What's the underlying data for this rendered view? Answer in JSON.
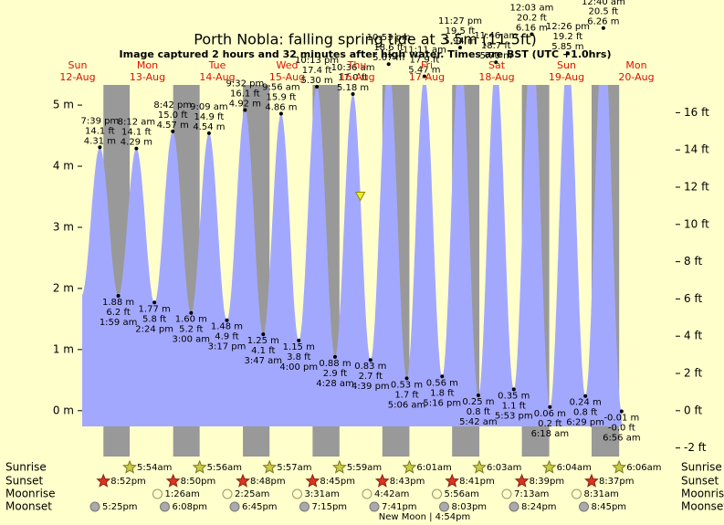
{
  "chart_data": {
    "type": "tide",
    "title": "Porth Nobla: falling  spring tide at 3.5m (11.5ft)",
    "subtitle": "Image captured 2 hours and 32 minutes after high water. Times are BST (UTC +1.0hrs)",
    "ylim": [
      -0.75,
      5.33
    ],
    "yticks": [
      {
        "value": 0,
        "label": "0 m"
      },
      {
        "value": 1,
        "label": "1 m"
      },
      {
        "value": 2,
        "label": "2 m"
      },
      {
        "value": 3,
        "label": "3 m"
      },
      {
        "value": 4,
        "label": "4 m"
      },
      {
        "value": 5,
        "label": "5 m"
      }
    ],
    "y2lim": [
      -2.46,
      17.49
    ],
    "y2ticks": [
      {
        "value": -2,
        "label": "-2 ft"
      },
      {
        "value": 0,
        "label": "0 ft"
      },
      {
        "value": 2,
        "label": "2 ft"
      },
      {
        "value": 4,
        "label": "4 ft"
      },
      {
        "value": 6,
        "label": "6 ft"
      },
      {
        "value": 8,
        "label": "8 ft"
      },
      {
        "value": 10,
        "label": "10 ft"
      },
      {
        "value": 12,
        "label": "12 ft"
      },
      {
        "value": 14,
        "label": "14 ft"
      },
      {
        "value": 16,
        "label": "16 ft"
      }
    ],
    "colors": {
      "water": "#a3a8ff",
      "day": "#ffffcc",
      "night": "#999999",
      "header": "#dd1100",
      "marker": "#eeee22"
    },
    "days": [
      {
        "day": "Sun",
        "date": "12-Aug",
        "sunset": "8:52pm",
        "moonset": "5:25pm"
      },
      {
        "day": "Mon",
        "date": "13-Aug",
        "sunrise": "5:54am",
        "sunset": "8:50pm",
        "moonrise": "1:26am",
        "moonset": "6:08pm"
      },
      {
        "day": "Tue",
        "date": "14-Aug",
        "sunrise": "5:56am",
        "sunset": "8:48pm",
        "moonrise": "2:25am",
        "moonset": "6:45pm"
      },
      {
        "day": "Wed",
        "date": "15-Aug",
        "sunrise": "5:57am",
        "sunset": "8:45pm",
        "moonrise": "3:31am",
        "moonset": "7:15pm"
      },
      {
        "day": "Thu",
        "date": "16-Aug",
        "sunrise": "5:59am",
        "sunset": "8:43pm",
        "moonrise": "4:42am",
        "moonset": "7:41pm"
      },
      {
        "day": "Fri",
        "date": "17-Aug",
        "sunrise": "6:01am",
        "sunset": "8:41pm",
        "moonrise": "5:56am",
        "moonset": "8:03pm"
      },
      {
        "day": "Sat",
        "date": "18-Aug",
        "sunrise": "6:03am",
        "sunset": "8:39pm",
        "moonrise": "7:13am",
        "moonset": "8:24pm"
      },
      {
        "day": "Sun",
        "date": "19-Aug",
        "sunrise": "6:04am",
        "sunset": "8:37pm",
        "moonrise": "8:31am",
        "moonset": "8:45pm"
      },
      {
        "day": "Mon",
        "date": "20-Aug",
        "sunrise": "6:06am"
      }
    ],
    "tides": [
      {
        "date": "12-Aug",
        "time": "7:39 pm",
        "m": 4.31,
        "m_label": "4.31 m",
        "ft_label": "14.1 ft"
      },
      {
        "date": "13-Aug",
        "time": "1:59 am",
        "m": 1.88,
        "m_label": "1.88 m",
        "ft_label": "6.2 ft"
      },
      {
        "date": "13-Aug",
        "time": "8:12 am",
        "m": 4.29,
        "m_label": "4.29 m",
        "ft_label": "14.1 ft"
      },
      {
        "date": "13-Aug",
        "time": "2:24 pm",
        "m": 1.77,
        "m_label": "1.77 m",
        "ft_label": "5.8 ft"
      },
      {
        "date": "13-Aug",
        "time": "8:42 pm",
        "m": 4.57,
        "m_label": "4.57 m",
        "ft_label": "15.0 ft"
      },
      {
        "date": "14-Aug",
        "time": "3:00 am",
        "m": 1.6,
        "m_label": "1.60 m",
        "ft_label": "5.2 ft"
      },
      {
        "date": "14-Aug",
        "time": "9:09 am",
        "m": 4.54,
        "m_label": "4.54 m",
        "ft_label": "14.9 ft"
      },
      {
        "date": "14-Aug",
        "time": "3:17 pm",
        "m": 1.48,
        "m_label": "1.48 m",
        "ft_label": "4.9 ft"
      },
      {
        "date": "14-Aug",
        "time": "9:32 pm",
        "m": 4.92,
        "m_label": "4.92 m",
        "ft_label": "16.1 ft"
      },
      {
        "date": "15-Aug",
        "time": "3:47 am",
        "m": 1.25,
        "m_label": "1.25 m",
        "ft_label": "4.1 ft"
      },
      {
        "date": "15-Aug",
        "time": "9:56 am",
        "m": 4.86,
        "m_label": "4.86 m",
        "ft_label": "15.9 ft"
      },
      {
        "date": "15-Aug",
        "time": "4:00 pm",
        "m": 1.15,
        "m_label": "1.15 m",
        "ft_label": "3.8 ft"
      },
      {
        "date": "15-Aug",
        "time": "10:13 pm",
        "m": 5.3,
        "m_label": "5.30 m",
        "ft_label": "17.4 ft"
      },
      {
        "date": "16-Aug",
        "time": "4:28 am",
        "m": 0.88,
        "m_label": "0.88 m",
        "ft_label": "2.9 ft"
      },
      {
        "date": "16-Aug",
        "time": "10:36 am",
        "m": 5.18,
        "m_label": "5.18 m",
        "ft_label": "17.0 ft"
      },
      {
        "date": "16-Aug",
        "time": "4:39 pm",
        "m": 0.83,
        "m_label": "0.83 m",
        "ft_label": "2.7 ft"
      },
      {
        "date": "16-Aug",
        "time": "10:53 pm",
        "m": 5.67,
        "m_label": "5.67 m",
        "ft_label": "18.6 ft"
      },
      {
        "date": "17-Aug",
        "time": "5:06 am",
        "m": 0.53,
        "m_label": "0.53 m",
        "ft_label": "1.7 ft"
      },
      {
        "date": "17-Aug",
        "time": "11:11 am",
        "m": 5.47,
        "m_label": "5.47 m",
        "ft_label": "17.9 ft"
      },
      {
        "date": "17-Aug",
        "time": "5:16 pm",
        "m": 0.56,
        "m_label": "0.56 m",
        "ft_label": "1.8 ft"
      },
      {
        "date": "17-Aug",
        "time": "11:27 pm",
        "m": 5.94,
        "m_label": "5.94 m",
        "ft_label": "19.5 ft"
      },
      {
        "date": "18-Aug",
        "time": "5:42 am",
        "m": 0.25,
        "m_label": "0.25 m",
        "ft_label": "0.8 ft"
      },
      {
        "date": "18-Aug",
        "time": "11:46 am",
        "m": 5.7,
        "m_label": "5.70 m",
        "ft_label": "18.7 ft"
      },
      {
        "date": "18-Aug",
        "time": "5:53 pm",
        "m": 0.35,
        "m_label": "0.35 m",
        "ft_label": "1.1 ft"
      },
      {
        "date": "19-Aug",
        "time": "12:03 am",
        "m": 6.16,
        "m_label": "6.16 m",
        "ft_label": "20.2 ft"
      },
      {
        "date": "19-Aug",
        "time": "6:18 am",
        "m": 0.06,
        "m_label": "0.06 m",
        "ft_label": "0.2 ft"
      },
      {
        "date": "19-Aug",
        "time": "12:26 pm",
        "m": 5.85,
        "m_label": "5.85 m",
        "ft_label": "19.2 ft"
      },
      {
        "date": "19-Aug",
        "time": "6:29 pm",
        "m": 0.24,
        "m_label": "0.24 m",
        "ft_label": "0.8 ft"
      },
      {
        "date": "20-Aug",
        "time": "12:40 am",
        "m": 6.26,
        "m_label": "6.26 m",
        "ft_label": "20.5 ft"
      },
      {
        "date": "20-Aug",
        "time": "6:56 am",
        "m": -0.01,
        "m_label": "-0.01 m",
        "ft_label": "-0.0 ft"
      }
    ],
    "marker": {
      "level_m": 3.5,
      "date": "16-Aug",
      "hours_after_high": 2,
      "minutes_after_high": 32
    },
    "row_labels": {
      "sunrise": "Sunrise",
      "sunset": "Sunset",
      "moonrise": "Moonrise",
      "moonset": "Moonset"
    },
    "moon_phase": "New Moon | 4:54pm"
  }
}
